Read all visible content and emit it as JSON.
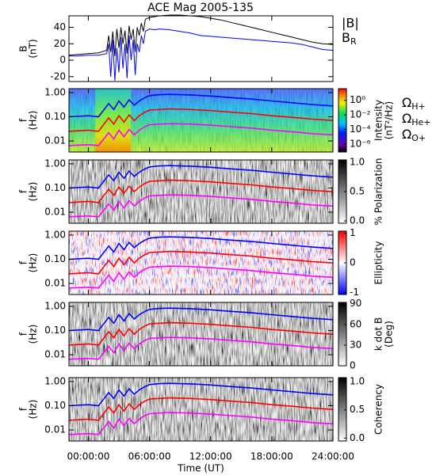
{
  "chart_data": [
    {
      "type": "line",
      "title": "ACE Mag 2005-135",
      "ylabel": [
        "B",
        "(nT)"
      ],
      "x": [
        -1.9,
        -1,
        0,
        1,
        1.8,
        2,
        2.2,
        2.4,
        2.6,
        2.8,
        3,
        3.2,
        3.4,
        3.6,
        3.8,
        4,
        4.2,
        4.4,
        4.6,
        4.8,
        5,
        5.2,
        5.4,
        5.6,
        6,
        6.5,
        7,
        8,
        9,
        10,
        11,
        12,
        13,
        14,
        15,
        16,
        17,
        18,
        19,
        20,
        21,
        22,
        23,
        24
      ],
      "xlim": [
        -1.9,
        24
      ],
      "ylim": [
        -26,
        54
      ],
      "yticks": [
        -20,
        0,
        20,
        40
      ],
      "series": [
        {
          "name": "|B|",
          "color": "#000000",
          "values": [
            6,
            7,
            8,
            9,
            12,
            30,
            10,
            35,
            5,
            38,
            15,
            40,
            20,
            36,
            8,
            42,
            25,
            38,
            10,
            40,
            30,
            45,
            35,
            50,
            52,
            53,
            54,
            55,
            55,
            54,
            53,
            51,
            49,
            46,
            43,
            40,
            37,
            34,
            31,
            28,
            25,
            22,
            20,
            19
          ]
        },
        {
          "name": "BR",
          "color": "#0000ff",
          "values": [
            5,
            5,
            6,
            6,
            8,
            20,
            -20,
            25,
            -25,
            15,
            -15,
            28,
            -10,
            20,
            -22,
            30,
            0,
            25,
            -18,
            20,
            10,
            30,
            20,
            35,
            38,
            37,
            38,
            37,
            35,
            33,
            30,
            29,
            28,
            27,
            26,
            25,
            24,
            23,
            22,
            21,
            19,
            16,
            13,
            12
          ]
        }
      ]
    },
    {
      "type": "spectrogram",
      "ylabel": [
        "f",
        "(Hz)"
      ],
      "ylog": true,
      "colormap": "rainbow",
      "x": [
        -1.9,
        0,
        1,
        2,
        2.5,
        3,
        3.5,
        4,
        4.5,
        5,
        5.5,
        6,
        7,
        8,
        10,
        12,
        14,
        16,
        18,
        20,
        22,
        24
      ],
      "xlim": [
        -1.9,
        24
      ],
      "ylim": [
        0.0035,
        1.45
      ],
      "yticks": [
        {
          "value": 1,
          "label": "1.00"
        },
        {
          "value": 0.1,
          "label": "0.10"
        },
        {
          "value": 0.01,
          "label": "0.01"
        }
      ],
      "colorbar": {
        "label": [
          "Intensity",
          "(nT²/Hz)"
        ],
        "log": true,
        "lim": [
          8e-08,
          40
        ],
        "ticks": [
          {
            "value": 1,
            "label": "10⁰"
          },
          {
            "value": 0.01,
            "label": "10⁻²"
          },
          {
            "value": 0.0001,
            "label": "10⁻⁴"
          },
          {
            "value": 1e-06,
            "label": "10⁻⁶"
          }
        ]
      },
      "series": [
        {
          "name": "ΩH+",
          "color": "#0000ff",
          "values": [
            0.1,
            0.11,
            0.1,
            0.35,
            0.2,
            0.45,
            0.25,
            0.5,
            0.3,
            0.45,
            0.6,
            0.75,
            0.82,
            0.84,
            0.8,
            0.72,
            0.62,
            0.54,
            0.45,
            0.38,
            0.32,
            0.28
          ]
        },
        {
          "name": "ΩHe+",
          "color": "#ff0000",
          "values": [
            0.025,
            0.028,
            0.025,
            0.09,
            0.05,
            0.11,
            0.06,
            0.12,
            0.07,
            0.11,
            0.15,
            0.19,
            0.2,
            0.21,
            0.2,
            0.18,
            0.155,
            0.135,
            0.11,
            0.095,
            0.08,
            0.07
          ]
        },
        {
          "name": "ΩO+",
          "color": "#ff00ff",
          "values": [
            0.0065,
            0.007,
            0.0065,
            0.022,
            0.012,
            0.028,
            0.015,
            0.03,
            0.018,
            0.028,
            0.038,
            0.047,
            0.05,
            0.052,
            0.05,
            0.045,
            0.039,
            0.034,
            0.028,
            0.024,
            0.02,
            0.018
          ]
        }
      ]
    },
    {
      "type": "spectrogram",
      "ylabel": [
        "f",
        "(Hz)"
      ],
      "ylog": true,
      "colormap": "gray",
      "x": [
        -1.9,
        0,
        1,
        2,
        2.5,
        3,
        3.5,
        4,
        4.5,
        5,
        5.5,
        6,
        7,
        8,
        10,
        12,
        14,
        16,
        18,
        20,
        22,
        24
      ],
      "xlim": [
        -1.9,
        24
      ],
      "ylim": [
        0.0035,
        1.45
      ],
      "yticks": [
        {
          "value": 1,
          "label": "1.00"
        },
        {
          "value": 0.1,
          "label": "0.10"
        },
        {
          "value": 0.01,
          "label": "0.01"
        }
      ],
      "colorbar": {
        "label": [
          "% Polarization"
        ],
        "log": false,
        "lim": [
          -0.04,
          1.04
        ],
        "ticks": [
          {
            "value": 0,
            "label": "0.0"
          },
          {
            "value": 0.5,
            "label": "0.5"
          },
          {
            "value": 1,
            "label": "1.0"
          }
        ]
      },
      "series": [
        {
          "color": "#0000ff",
          "values": [
            0.1,
            0.11,
            0.1,
            0.35,
            0.2,
            0.45,
            0.25,
            0.5,
            0.3,
            0.45,
            0.6,
            0.75,
            0.82,
            0.84,
            0.8,
            0.72,
            0.62,
            0.54,
            0.45,
            0.38,
            0.32,
            0.28
          ]
        },
        {
          "color": "#ff0000",
          "values": [
            0.025,
            0.028,
            0.025,
            0.09,
            0.05,
            0.11,
            0.06,
            0.12,
            0.07,
            0.11,
            0.15,
            0.19,
            0.2,
            0.21,
            0.2,
            0.18,
            0.155,
            0.135,
            0.11,
            0.095,
            0.08,
            0.07
          ]
        },
        {
          "color": "#ff00ff",
          "values": [
            0.0065,
            0.007,
            0.0065,
            0.022,
            0.012,
            0.028,
            0.015,
            0.03,
            0.018,
            0.028,
            0.038,
            0.047,
            0.05,
            0.052,
            0.05,
            0.045,
            0.039,
            0.034,
            0.028,
            0.024,
            0.02,
            0.018
          ]
        }
      ]
    },
    {
      "type": "spectrogram",
      "ylabel": [
        "f",
        "(Hz)"
      ],
      "ylog": true,
      "colormap": "bwr",
      "x": [
        -1.9,
        0,
        1,
        2,
        2.5,
        3,
        3.5,
        4,
        4.5,
        5,
        5.5,
        6,
        7,
        8,
        10,
        12,
        14,
        16,
        18,
        20,
        22,
        24
      ],
      "xlim": [
        -1.9,
        24
      ],
      "ylim": [
        0.0035,
        1.45
      ],
      "yticks": [
        {
          "value": 1,
          "label": "1.00"
        },
        {
          "value": 0.1,
          "label": "0.10"
        },
        {
          "value": 0.01,
          "label": "0.01"
        }
      ],
      "colorbar": {
        "label": [
          "Ellipticity"
        ],
        "log": false,
        "lim": [
          -1.07,
          1.07
        ],
        "ticks": [
          -1,
          0,
          1
        ]
      },
      "series": [
        {
          "color": "#0000ff",
          "values": [
            0.1,
            0.11,
            0.1,
            0.35,
            0.2,
            0.45,
            0.25,
            0.5,
            0.3,
            0.45,
            0.6,
            0.75,
            0.82,
            0.84,
            0.8,
            0.72,
            0.62,
            0.54,
            0.45,
            0.38,
            0.32,
            0.28
          ]
        },
        {
          "color": "#ff0000",
          "values": [
            0.025,
            0.028,
            0.025,
            0.09,
            0.05,
            0.11,
            0.06,
            0.12,
            0.07,
            0.11,
            0.15,
            0.19,
            0.2,
            0.21,
            0.2,
            0.18,
            0.155,
            0.135,
            0.11,
            0.095,
            0.08,
            0.07
          ]
        },
        {
          "color": "#ff00ff",
          "values": [
            0.0065,
            0.007,
            0.0065,
            0.022,
            0.012,
            0.028,
            0.015,
            0.03,
            0.018,
            0.028,
            0.038,
            0.047,
            0.05,
            0.052,
            0.05,
            0.045,
            0.039,
            0.034,
            0.028,
            0.024,
            0.02,
            0.018
          ]
        }
      ]
    },
    {
      "type": "spectrogram",
      "ylabel": [
        "f",
        "(Hz)"
      ],
      "ylog": true,
      "colormap": "gray",
      "x": [
        -1.9,
        0,
        1,
        2,
        2.5,
        3,
        3.5,
        4,
        4.5,
        5,
        5.5,
        6,
        7,
        8,
        10,
        12,
        14,
        16,
        18,
        20,
        22,
        24
      ],
      "xlim": [
        -1.9,
        24
      ],
      "ylim": [
        0.0035,
        1.45
      ],
      "yticks": [
        {
          "value": 1,
          "label": "1.00"
        },
        {
          "value": 0.1,
          "label": "0.10"
        },
        {
          "value": 0.01,
          "label": "0.01"
        }
      ],
      "colorbar": {
        "label": [
          "k dot B",
          "(Deg)"
        ],
        "log": false,
        "lim": [
          0,
          92
        ],
        "ticks": [
          0,
          30,
          60,
          90
        ]
      },
      "series": [
        {
          "color": "#0000ff",
          "values": [
            0.1,
            0.11,
            0.1,
            0.35,
            0.2,
            0.45,
            0.25,
            0.5,
            0.3,
            0.45,
            0.6,
            0.75,
            0.82,
            0.84,
            0.8,
            0.72,
            0.62,
            0.54,
            0.45,
            0.38,
            0.32,
            0.28
          ]
        },
        {
          "color": "#ff0000",
          "values": [
            0.025,
            0.028,
            0.025,
            0.09,
            0.05,
            0.11,
            0.06,
            0.12,
            0.07,
            0.11,
            0.15,
            0.19,
            0.2,
            0.21,
            0.2,
            0.18,
            0.155,
            0.135,
            0.11,
            0.095,
            0.08,
            0.07
          ]
        },
        {
          "color": "#ff00ff",
          "values": [
            0.0065,
            0.007,
            0.0065,
            0.022,
            0.012,
            0.028,
            0.015,
            0.03,
            0.018,
            0.028,
            0.038,
            0.047,
            0.05,
            0.052,
            0.05,
            0.045,
            0.039,
            0.034,
            0.028,
            0.024,
            0.02,
            0.018
          ]
        }
      ]
    },
    {
      "type": "spectrogram",
      "ylabel": [
        "f",
        "(Hz)"
      ],
      "ylog": true,
      "colormap": "gray",
      "xlabel": "Time (UT)",
      "x": [
        -1.9,
        0,
        1,
        2,
        2.5,
        3,
        3.5,
        4,
        4.5,
        5,
        5.5,
        6,
        7,
        8,
        10,
        12,
        14,
        16,
        18,
        20,
        22,
        24
      ],
      "xlim": [
        -1.9,
        24
      ],
      "ylim": [
        0.0035,
        1.45
      ],
      "xticks": [
        {
          "value": 0,
          "label": "00:00:00"
        },
        {
          "value": 6,
          "label": "06:00:00"
        },
        {
          "value": 12,
          "label": "12:00:00"
        },
        {
          "value": 18,
          "label": "18:00:00"
        },
        {
          "value": 24,
          "label": "24:00:00"
        }
      ],
      "yticks": [
        {
          "value": 1,
          "label": "1.00"
        },
        {
          "value": 0.1,
          "label": "0.10"
        },
        {
          "value": 0.01,
          "label": "0.01"
        }
      ],
      "colorbar": {
        "label": [
          "Coherency"
        ],
        "log": false,
        "lim": [
          -0.05,
          1.07
        ],
        "ticks": [
          {
            "value": 0,
            "label": "0.0"
          },
          {
            "value": 0.5,
            "label": "0.5"
          },
          {
            "value": 1,
            "label": "1.0"
          }
        ]
      },
      "series": [
        {
          "color": "#0000ff",
          "values": [
            0.1,
            0.11,
            0.1,
            0.35,
            0.2,
            0.45,
            0.25,
            0.5,
            0.3,
            0.45,
            0.6,
            0.75,
            0.82,
            0.84,
            0.8,
            0.72,
            0.62,
            0.54,
            0.45,
            0.38,
            0.32,
            0.28
          ]
        },
        {
          "color": "#ff0000",
          "values": [
            0.025,
            0.028,
            0.025,
            0.09,
            0.05,
            0.11,
            0.06,
            0.12,
            0.07,
            0.11,
            0.15,
            0.19,
            0.2,
            0.21,
            0.2,
            0.18,
            0.155,
            0.135,
            0.11,
            0.095,
            0.08,
            0.07
          ]
        },
        {
          "color": "#ff00ff",
          "values": [
            0.0065,
            0.007,
            0.0065,
            0.022,
            0.012,
            0.028,
            0.015,
            0.03,
            0.018,
            0.028,
            0.038,
            0.047,
            0.05,
            0.052,
            0.05,
            0.045,
            0.039,
            0.034,
            0.028,
            0.024,
            0.02,
            0.018
          ]
        }
      ]
    }
  ]
}
